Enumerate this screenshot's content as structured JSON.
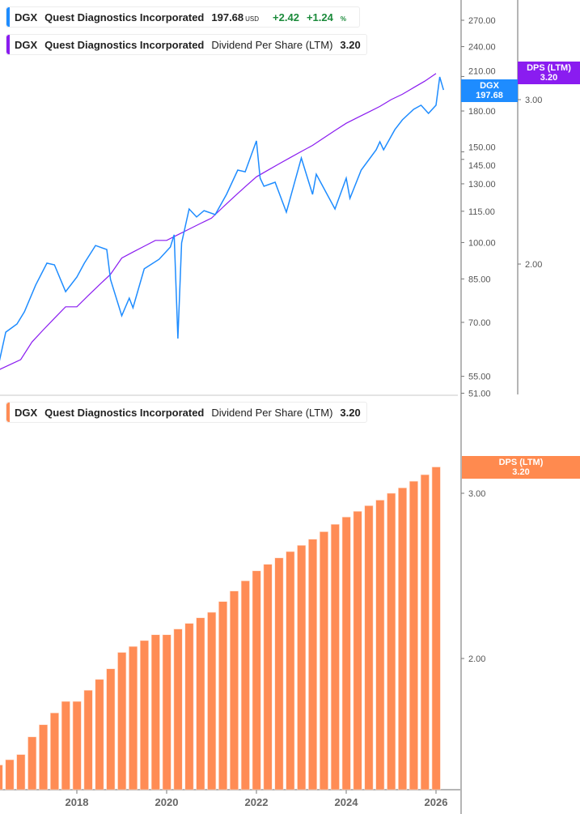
{
  "legends": {
    "price": {
      "ticker": "DGX",
      "name": "Quest Diagnostics Incorporated",
      "price": "197.68",
      "currency": "USD",
      "change": "+2.42",
      "change_pct": "+1.24",
      "pct_sign": "%"
    },
    "dps_top": {
      "ticker": "DGX",
      "name": "Quest Diagnostics Incorporated",
      "metric": "Dividend Per Share (LTM)",
      "value": "3.20"
    },
    "dps_bottom": {
      "ticker": "DGX",
      "name": "Quest Diagnostics Incorporated",
      "metric": "Dividend Per Share (LTM)",
      "value": "3.20"
    }
  },
  "tags": {
    "price": {
      "label": "DGX",
      "value": "197.68"
    },
    "dps_top": {
      "label": "DPS (LTM)",
      "value": "3.20"
    },
    "dps_bottom": {
      "label": "DPS (LTM)",
      "value": "3.20"
    }
  },
  "colors": {
    "price": "#1e8cff",
    "dps_line": "#8a1cf0",
    "dps_bar": "#ff8c55",
    "positive": "#1a8a3a"
  },
  "chart_data": [
    {
      "type": "line",
      "scale": "log",
      "price_axis_ticks": [
        "270.00",
        "240.00",
        "210.00",
        "180.00",
        "150.00",
        "145.00",
        "130.00",
        "115.00",
        "100.00",
        "85.00",
        "70.00",
        "55.00",
        "51.00"
      ],
      "dps_axis_ticks": [
        "3.00",
        "2.00"
      ],
      "ylim": [
        51,
        290
      ],
      "series": [
        {
          "name": "DGX",
          "axis": "price",
          "points": [
            [
              "2016-04",
              57.6
            ],
            [
              "2016-06",
              67.0
            ],
            [
              "2016-09",
              69.5
            ],
            [
              "2016-11",
              73.4
            ],
            [
              "2017-02",
              82.7
            ],
            [
              "2017-05",
              91.2
            ],
            [
              "2017-07",
              90.5
            ],
            [
              "2017-10",
              80.3
            ],
            [
              "2018-01",
              85.7
            ],
            [
              "2018-03",
              91.2
            ],
            [
              "2018-06",
              98.7
            ],
            [
              "2018-09",
              96.9
            ],
            [
              "2018-10",
              84.8
            ],
            [
              "2019-01",
              72.1
            ],
            [
              "2019-03",
              78.0
            ],
            [
              "2019-04",
              74.7
            ],
            [
              "2019-07",
              88.9
            ],
            [
              "2019-11",
              92.8
            ],
            [
              "2020-02",
              98.0
            ],
            [
              "2020-03",
              103.5
            ],
            [
              "2020-04",
              65.1
            ],
            [
              "2020-05",
              99.8
            ],
            [
              "2020-07",
              116.2
            ],
            [
              "2020-09",
              112.1
            ],
            [
              "2020-11",
              115.3
            ],
            [
              "2021-02",
              113.3
            ],
            [
              "2021-05",
              124.0
            ],
            [
              "2021-08",
              138.2
            ],
            [
              "2021-10",
              137.2
            ],
            [
              "2022-01",
              157.5
            ],
            [
              "2022-02",
              133.3
            ],
            [
              "2022-03",
              128.6
            ],
            [
              "2022-06",
              130.9
            ],
            [
              "2022-09",
              114.5
            ],
            [
              "2023-01",
              145.9
            ],
            [
              "2023-04",
              124.0
            ],
            [
              "2023-05",
              135.7
            ],
            [
              "2023-10",
              116.2
            ],
            [
              "2024-01",
              133.3
            ],
            [
              "2024-02",
              121.8
            ],
            [
              "2024-05",
              138.2
            ],
            [
              "2024-09",
              151.3
            ],
            [
              "2024-10",
              156.9
            ],
            [
              "2024-11",
              151.3
            ],
            [
              "2025-02",
              165.6
            ],
            [
              "2025-04",
              173.0
            ],
            [
              "2025-07",
              181.3
            ],
            [
              "2025-09",
              184.7
            ],
            [
              "2025-11",
              178.1
            ],
            [
              "2026-01",
              184.7
            ],
            [
              "2026-02",
              209.6
            ],
            [
              "2026-03",
              197.68
            ]
          ]
        },
        {
          "name": "DPS (LTM)",
          "axis": "dps",
          "source": "dps_bars"
        }
      ]
    },
    {
      "type": "bar",
      "scale": "log",
      "y_axis_ticks": [
        "3.00",
        "2.00"
      ],
      "x_tick_labels": [
        "2018",
        "2020",
        "2022",
        "2024",
        "2026"
      ],
      "dates": [
        "2016-04",
        "2016-07",
        "2016-10",
        "2017-01",
        "2017-04",
        "2017-07",
        "2017-10",
        "2018-01",
        "2018-04",
        "2018-07",
        "2018-10",
        "2019-01",
        "2019-04",
        "2019-07",
        "2019-10",
        "2020-01",
        "2020-04",
        "2020-07",
        "2020-10",
        "2021-01",
        "2021-04",
        "2021-07",
        "2021-10",
        "2022-01",
        "2022-04",
        "2022-07",
        "2022-10",
        "2023-01",
        "2023-04",
        "2023-07",
        "2023-10",
        "2024-01",
        "2024-04",
        "2024-07",
        "2024-10",
        "2025-01",
        "2025-04",
        "2025-07",
        "2025-10",
        "2026-01"
      ],
      "values": [
        1.54,
        1.56,
        1.58,
        1.65,
        1.7,
        1.75,
        1.8,
        1.8,
        1.85,
        1.9,
        1.95,
        2.03,
        2.06,
        2.09,
        2.12,
        2.12,
        2.15,
        2.18,
        2.21,
        2.24,
        2.3,
        2.36,
        2.42,
        2.48,
        2.52,
        2.56,
        2.6,
        2.64,
        2.68,
        2.73,
        2.78,
        2.83,
        2.87,
        2.91,
        2.95,
        3.0,
        3.04,
        3.09,
        3.14,
        3.2
      ],
      "series_name": "DPS (LTM)"
    }
  ]
}
